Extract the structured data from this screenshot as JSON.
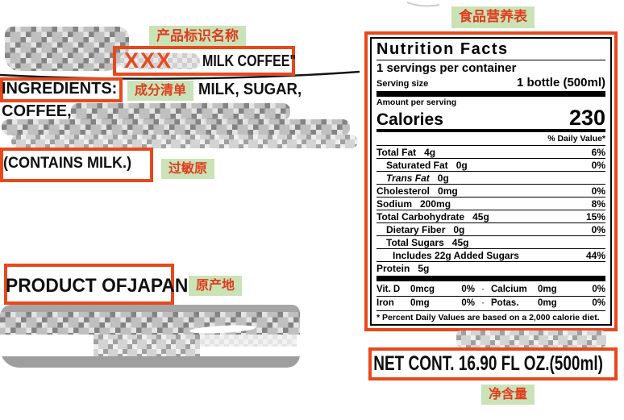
{
  "annotations": {
    "product_name_label": "产品标识名称",
    "ingredients_label": "成分清单",
    "allergen_label": "过敏原",
    "origin_label": "原产地",
    "nutrition_label": "食品营养表",
    "net_content_label": "净含量",
    "redacted_brand": "XXX"
  },
  "label": {
    "product_title": "MILK COFFEE\"",
    "ingredients_heading": "INGREDIENTS:",
    "ingredients_line1": "MILK, SUGAR,",
    "ingredients_line2": "COFFEE,",
    "allergen_text": "(CONTAINS MILK.)",
    "origin_text": "PRODUCT OFJAPAN",
    "net_content_text": "NET CONT. 16.90 FL OZ.(500ml)"
  },
  "nutrition": {
    "title": "Nutrition Facts",
    "servings_per_container": "1 servings per container",
    "serving_size_label": "Serving size",
    "serving_size_value": "1 bottle (500ml)",
    "amount_per_serving": "Amount per serving",
    "calories_label": "Calories",
    "calories_value": "230",
    "daily_value_header": "% Daily Value*",
    "rows": [
      {
        "name": "Total Fat",
        "amount": "4g",
        "dv": "6%",
        "indent": 0,
        "bold": true
      },
      {
        "name": "Saturated Fat",
        "amount": "0g",
        "dv": "0%",
        "indent": 1
      },
      {
        "name": "Trans Fat",
        "amount": "0g",
        "dv": "",
        "indent": 1,
        "italic": true
      },
      {
        "name": "Cholesterol",
        "amount": "0mg",
        "dv": "0%",
        "indent": 0,
        "bold": true
      },
      {
        "name": "Sodium",
        "amount": "200mg",
        "dv": "8%",
        "indent": 0,
        "bold": true
      },
      {
        "name": "Total Carbohydrate",
        "amount": "45g",
        "dv": "15%",
        "indent": 0,
        "bold": true
      },
      {
        "name": "Dietary Fiber",
        "amount": "0g",
        "dv": "0%",
        "indent": 1
      },
      {
        "name": "Total Sugars",
        "amount": "45g",
        "dv": "",
        "indent": 1
      },
      {
        "name": "Includes 22g Added Sugars",
        "amount": "",
        "dv": "44%",
        "indent": 2
      },
      {
        "name": "Protein",
        "amount": "5g",
        "dv": "",
        "indent": 0,
        "bold": true
      }
    ],
    "micros": [
      {
        "left_name": "Vit. D",
        "left_amount": "0mcg",
        "left_dv": "0%",
        "sep": "·",
        "right_name": "Calcium",
        "right_amount": "0mg",
        "right_dv": "0%"
      },
      {
        "left_name": "Iron",
        "left_amount": "0mg",
        "left_dv": "0%",
        "sep": "·",
        "right_name": "Potas.",
        "right_amount": "0mg",
        "right_dv": "0%"
      }
    ],
    "footnote": "* Percent Daily Values are based on a 2,000 calorie diet."
  },
  "colors": {
    "annotation_box_orange": "#e8481c",
    "tag_background_green": "#c9e3b7",
    "tag_text_red": "#e23a1d"
  }
}
